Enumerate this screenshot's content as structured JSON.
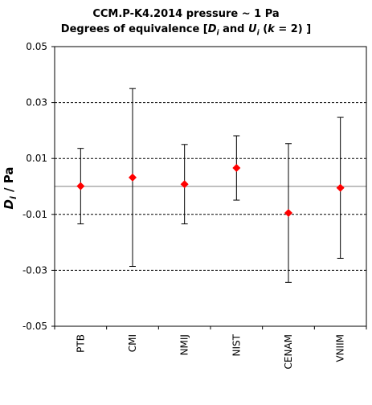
{
  "chart_data": {
    "type": "scatter",
    "title": "CCM.P-K4.2014  pressure ~ 1 Pa",
    "subtitle": "Degrees of equivalence [D_i and U_i (k = 2) ]",
    "ylabel": "D_i / Pa",
    "xlabel": "",
    "categories": [
      "PTB",
      "CMI",
      "NMIJ",
      "NIST",
      "CENAM",
      "VNIIM"
    ],
    "ylim": [
      -0.05,
      0.05
    ],
    "yticks": [
      "0.05",
      "0.03",
      "0.01",
      "-0.01",
      "-0.03",
      "-0.05"
    ],
    "gridlines": [
      0.03,
      0.01,
      -0.01,
      -0.03
    ],
    "series": [
      {
        "values": [
          0.0001,
          0.0032,
          0.0008,
          0.0066,
          -0.0095,
          -0.0005
        ],
        "errors": [
          0.0135,
          0.0318,
          0.0142,
          0.0115,
          0.0248,
          0.0252
        ]
      }
    ],
    "colors": {
      "marker": "#ff0000",
      "errorbar": "#000000",
      "grid": "#000000",
      "zero_line": "#808080"
    },
    "grid": true,
    "legend": "none"
  }
}
